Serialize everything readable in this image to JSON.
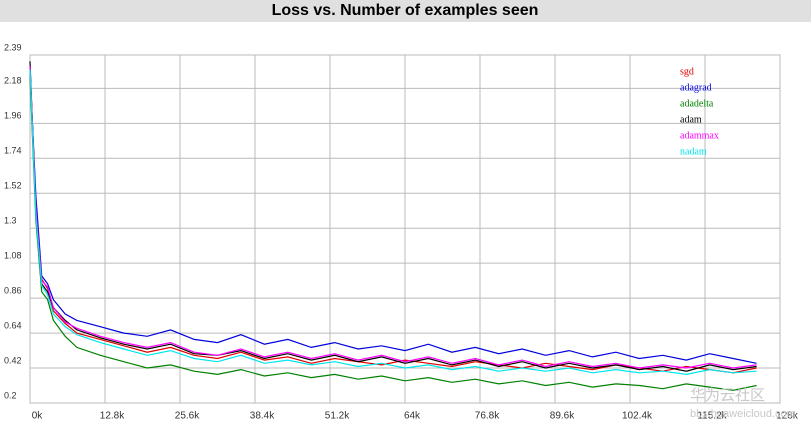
{
  "chart_data": {
    "type": "line",
    "title": "Loss vs. Number of examples seen",
    "x": [
      0,
      1000,
      2000,
      3000,
      4000,
      6000,
      8000,
      12000,
      16000,
      20000,
      24000,
      28000,
      32000,
      36000,
      40000,
      44000,
      48000,
      52000,
      56000,
      60000,
      64000,
      68000,
      72000,
      76000,
      80000,
      84000,
      88000,
      92000,
      96000,
      100000,
      104000,
      108000,
      112000,
      116000,
      120000,
      124000
    ],
    "series": [
      {
        "name": "sgd",
        "color": "#e00000",
        "values": [
          2.3,
          1.45,
          0.98,
          0.92,
          0.78,
          0.7,
          0.64,
          0.6,
          0.56,
          0.52,
          0.55,
          0.5,
          0.48,
          0.52,
          0.47,
          0.49,
          0.45,
          0.48,
          0.46,
          0.44,
          0.47,
          0.45,
          0.43,
          0.46,
          0.44,
          0.42,
          0.45,
          0.43,
          0.41,
          0.44,
          0.42,
          0.4,
          0.43,
          0.41,
          0.39,
          0.42
        ]
      },
      {
        "name": "adagrad",
        "color": "#0000dd",
        "values": [
          2.28,
          1.5,
          1.0,
          0.95,
          0.85,
          0.76,
          0.72,
          0.68,
          0.64,
          0.62,
          0.66,
          0.6,
          0.58,
          0.63,
          0.57,
          0.6,
          0.55,
          0.58,
          0.54,
          0.56,
          0.53,
          0.57,
          0.52,
          0.55,
          0.51,
          0.54,
          0.5,
          0.53,
          0.49,
          0.52,
          0.48,
          0.5,
          0.47,
          0.51,
          0.48,
          0.45
        ]
      },
      {
        "name": "adadelta",
        "color": "#008000",
        "values": [
          2.25,
          1.35,
          0.9,
          0.85,
          0.72,
          0.62,
          0.55,
          0.5,
          0.46,
          0.42,
          0.44,
          0.4,
          0.38,
          0.41,
          0.37,
          0.39,
          0.36,
          0.38,
          0.35,
          0.37,
          0.34,
          0.36,
          0.33,
          0.35,
          0.32,
          0.34,
          0.31,
          0.33,
          0.3,
          0.32,
          0.31,
          0.29,
          0.32,
          0.3,
          0.28,
          0.31
        ]
      },
      {
        "name": "adam",
        "color": "#000000",
        "values": [
          2.35,
          1.4,
          0.95,
          0.9,
          0.8,
          0.72,
          0.66,
          0.61,
          0.57,
          0.54,
          0.57,
          0.51,
          0.5,
          0.53,
          0.48,
          0.51,
          0.47,
          0.5,
          0.46,
          0.49,
          0.45,
          0.48,
          0.44,
          0.47,
          0.43,
          0.46,
          0.42,
          0.45,
          0.42,
          0.44,
          0.41,
          0.43,
          0.4,
          0.44,
          0.41,
          0.43
        ]
      },
      {
        "name": "adammax",
        "color": "#ff00ff",
        "values": [
          2.32,
          1.42,
          0.97,
          0.93,
          0.8,
          0.71,
          0.67,
          0.62,
          0.58,
          0.55,
          0.58,
          0.52,
          0.5,
          0.54,
          0.49,
          0.52,
          0.48,
          0.51,
          0.47,
          0.5,
          0.46,
          0.49,
          0.45,
          0.48,
          0.44,
          0.47,
          0.43,
          0.46,
          0.43,
          0.45,
          0.42,
          0.44,
          0.42,
          0.45,
          0.42,
          0.44
        ]
      },
      {
        "name": "nadam",
        "color": "#00e5ee",
        "values": [
          2.3,
          1.38,
          0.94,
          0.88,
          0.76,
          0.68,
          0.63,
          0.58,
          0.54,
          0.5,
          0.53,
          0.48,
          0.46,
          0.5,
          0.45,
          0.47,
          0.44,
          0.46,
          0.43,
          0.45,
          0.42,
          0.44,
          0.41,
          0.43,
          0.4,
          0.42,
          0.4,
          0.42,
          0.39,
          0.41,
          0.39,
          0.4,
          0.38,
          0.41,
          0.39,
          0.4
        ]
      }
    ],
    "xlim": [
      0,
      128000
    ],
    "xticks": [
      {
        "value": 0,
        "label": "0k"
      },
      {
        "value": 12800,
        "label": "12.8k"
      },
      {
        "value": 25600,
        "label": "25.6k"
      },
      {
        "value": 38400,
        "label": "38.4k"
      },
      {
        "value": 51200,
        "label": "51.2k"
      },
      {
        "value": 64000,
        "label": "64k"
      },
      {
        "value": 76800,
        "label": "76.8k"
      },
      {
        "value": 89600,
        "label": "89.6k"
      },
      {
        "value": 102400,
        "label": "102.4k"
      },
      {
        "value": 115200,
        "label": "115.2k"
      },
      {
        "value": 128000,
        "label": "128k"
      }
    ],
    "ylim": [
      0.2,
      2.39
    ],
    "yticks": [
      0.2,
      0.42,
      0.64,
      0.86,
      1.08,
      1.3,
      1.52,
      1.74,
      1.96,
      2.18,
      2.39
    ],
    "grid": true,
    "legend": "top-right",
    "watermark": "华为云社区",
    "watermark_url": "bbs.huaweicloud.com"
  }
}
